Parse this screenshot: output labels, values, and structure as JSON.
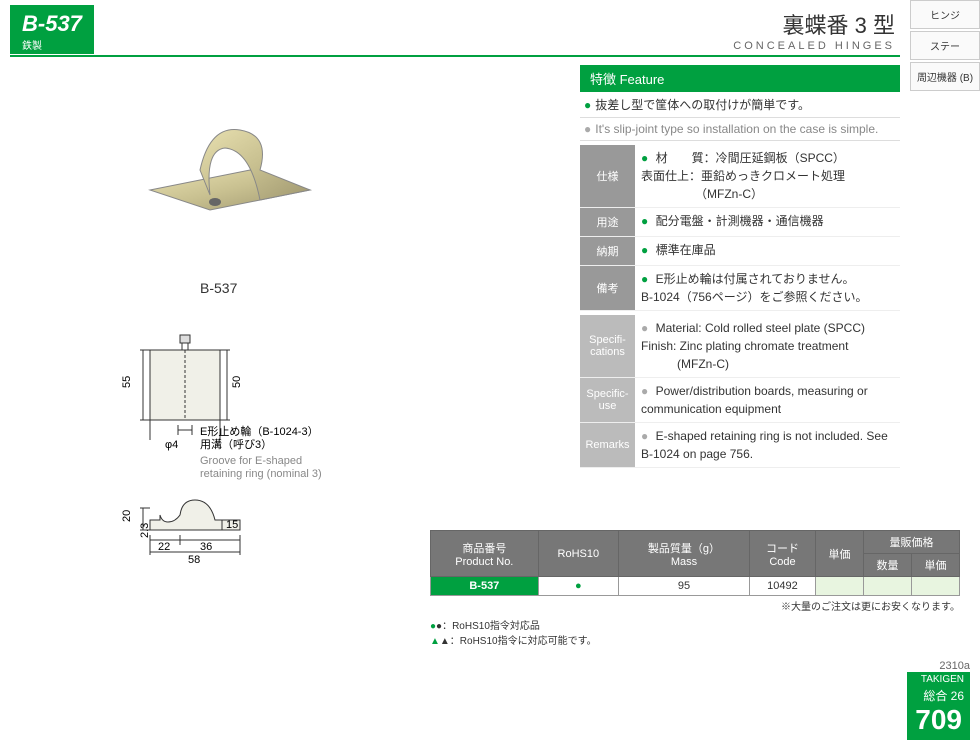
{
  "header": {
    "code": "B-537",
    "material_tag": "鉄製",
    "title_jp": "裏蝶番 3 型",
    "title_en": "CONCEALED HINGES"
  },
  "side_tabs": [
    "ヒンジ",
    "ステー",
    "周辺機器 (B)"
  ],
  "image_caption": "B-537",
  "diagram": {
    "h1": "55",
    "h2": "50",
    "phi": "φ4",
    "note_jp1": "E形止め輪（B-1024-3）",
    "note_jp2": "用溝（呼び3）",
    "note_en1": "Groove for E-shaped",
    "note_en2": "retaining ring (nominal 3)",
    "d20": "20",
    "d23": "2.3",
    "d15": "15",
    "d22": "22",
    "d36": "36",
    "d58": "58"
  },
  "feature": {
    "header": "特徴   Feature",
    "jp": "抜差し型で筐体への取付けが簡単です。",
    "en": "It's slip-joint type so installation on the case is simple."
  },
  "spec_jp": [
    {
      "label": "仕様",
      "val": "材　　質：冷間圧延鋼板（SPCC）\n表面仕上：亜鉛めっきクロメート処理\n　　　　　（MFZn-C）"
    },
    {
      "label": "用途",
      "val": "配分電盤・計測機器・通信機器"
    },
    {
      "label": "納期",
      "val": "標準在庫品"
    },
    {
      "label": "備考",
      "val": "E形止め輪は付属されておりません。\nB-1024（756ページ）をご参照ください。"
    }
  ],
  "spec_en": [
    {
      "label": "Specifi-cations",
      "val": "Material: Cold rolled steel plate (SPCC)\nFinish: Zinc plating chromate treatment\n　　　(MFZn-C)"
    },
    {
      "label": "Specific-use",
      "val": "Power/distribution boards, measuring or communication equipment"
    },
    {
      "label": "Remarks",
      "val": "E-shaped retaining ring is not included. See B-1024 on page 756."
    }
  ],
  "ptable": {
    "headers": {
      "pno_jp": "商品番号",
      "pno_en": "Product No.",
      "rohs": "RoHS10",
      "mass_jp": "製品質量（g）",
      "mass_en": "Mass",
      "code_jp": "コード",
      "code_en": "Code",
      "unit": "単価",
      "bulk": "量販価格",
      "qty": "数量",
      "bprice": "単価"
    },
    "row": {
      "pno": "B-537",
      "rohs": "●",
      "mass": "95",
      "code": "10492"
    }
  },
  "rohs_notes": {
    "a": "●：RoHS10指令対応品",
    "b": "▲：RoHS10指令に対応可能です。"
  },
  "bulk_note": "※大量のご注文は更にお安くなります。",
  "footer": {
    "rev": "2310a",
    "brand": "TAKIGEN",
    "cat": "総合 26",
    "page": "709"
  }
}
